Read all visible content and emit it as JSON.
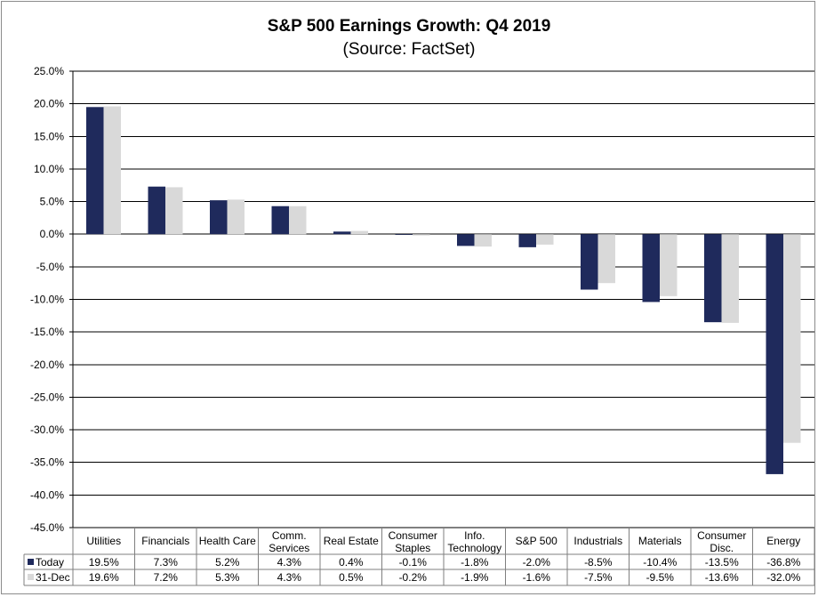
{
  "chart_data": {
    "type": "bar",
    "title": "S&P 500 Earnings Growth: Q4 2019",
    "subtitle": "(Source: FactSet)",
    "categories": [
      [
        "Utilities"
      ],
      [
        "Financials"
      ],
      [
        "Health Care"
      ],
      [
        "Comm.",
        "Services"
      ],
      [
        "Real Estate"
      ],
      [
        "Consumer",
        "Staples"
      ],
      [
        "Info.",
        "Technology"
      ],
      [
        "S&P 500"
      ],
      [
        "Industrials"
      ],
      [
        "Materials"
      ],
      [
        "Consumer",
        "Disc."
      ],
      [
        "Energy"
      ]
    ],
    "series": [
      {
        "name": "Today",
        "color": "#1F2A5C",
        "values": [
          19.5,
          7.3,
          5.2,
          4.3,
          0.4,
          -0.1,
          -1.8,
          -2.0,
          -8.5,
          -10.4,
          -13.5,
          -36.8
        ]
      },
      {
        "name": "31-Dec",
        "color": "#D9D9D9",
        "values": [
          19.6,
          7.2,
          5.3,
          4.3,
          0.5,
          -0.2,
          -1.9,
          -1.6,
          -7.5,
          -9.5,
          -13.6,
          -32.0
        ]
      }
    ],
    "ylim": [
      -45,
      25
    ],
    "yticks": [
      25,
      20,
      15,
      10,
      5,
      0,
      -5,
      -10,
      -15,
      -20,
      -25,
      -30,
      -35,
      -40,
      -45
    ],
    "ytick_format": "percent_1dp",
    "grid": true,
    "legend": "data-table",
    "xlabel": "",
    "ylabel": ""
  }
}
